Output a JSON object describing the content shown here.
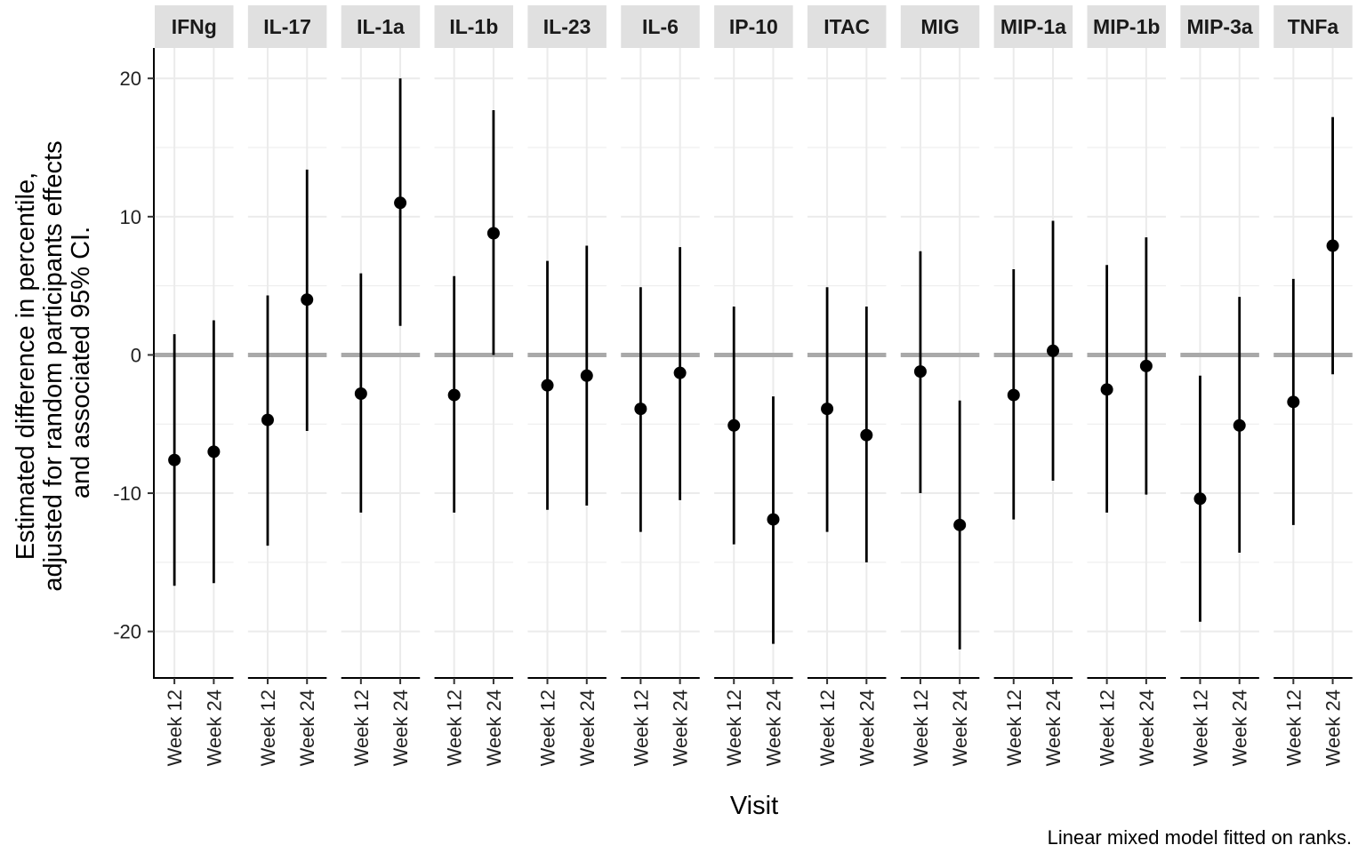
{
  "chart_data": {
    "type": "scatter",
    "subtype": "point-range faceted",
    "facets": [
      "IFNg",
      "IL-17",
      "IL-1a",
      "IL-1b",
      "IL-23",
      "IL-6",
      "IP-10",
      "ITAC",
      "MIG",
      "MIP-1a",
      "MIP-1b",
      "MIP-3a",
      "TNFa"
    ],
    "categories": [
      "Week 12",
      "Week 24"
    ],
    "xlabel": "Visit",
    "ylabel_lines": [
      "Estimated difference in percentile,",
      "adjusted for random participants effects",
      "and associated 95% CI."
    ],
    "caption": "Linear mixed model fitted on ranks.",
    "ylim": [
      -23.3,
      22.2
    ],
    "yticks": [
      20,
      10,
      0,
      -10,
      -20
    ],
    "ytick_labels": [
      "20",
      "10",
      "0",
      "-10",
      "-20"
    ],
    "reference_line": 0,
    "grid": true,
    "colors": {
      "point": "#000000",
      "reference_line": "#a9a9a9",
      "grid": "#ebebeb",
      "strip": "#e0e0e0"
    },
    "series": [
      {
        "facet": "IFNg",
        "points": [
          {
            "x": "Week 12",
            "y": -7.6,
            "lo": -16.7,
            "hi": 1.5
          },
          {
            "x": "Week 24",
            "y": -7.0,
            "lo": -16.5,
            "hi": 2.5
          }
        ]
      },
      {
        "facet": "IL-17",
        "points": [
          {
            "x": "Week 12",
            "y": -4.7,
            "lo": -13.8,
            "hi": 4.3
          },
          {
            "x": "Week 24",
            "y": 4.0,
            "lo": -5.5,
            "hi": 13.4
          }
        ]
      },
      {
        "facet": "IL-1a",
        "points": [
          {
            "x": "Week 12",
            "y": -2.8,
            "lo": -11.4,
            "hi": 5.9
          },
          {
            "x": "Week 24",
            "y": 11.0,
            "lo": 2.1,
            "hi": 20.0
          }
        ]
      },
      {
        "facet": "IL-1b",
        "points": [
          {
            "x": "Week 12",
            "y": -2.9,
            "lo": -11.4,
            "hi": 5.7
          },
          {
            "x": "Week 24",
            "y": 8.8,
            "lo": 0.0,
            "hi": 17.7
          }
        ]
      },
      {
        "facet": "IL-23",
        "points": [
          {
            "x": "Week 12",
            "y": -2.2,
            "lo": -11.2,
            "hi": 6.8
          },
          {
            "x": "Week 24",
            "y": -1.5,
            "lo": -10.9,
            "hi": 7.9
          }
        ]
      },
      {
        "facet": "IL-6",
        "points": [
          {
            "x": "Week 12",
            "y": -3.9,
            "lo": -12.8,
            "hi": 4.9
          },
          {
            "x": "Week 24",
            "y": -1.3,
            "lo": -10.5,
            "hi": 7.8
          }
        ]
      },
      {
        "facet": "IP-10",
        "points": [
          {
            "x": "Week 12",
            "y": -5.1,
            "lo": -13.7,
            "hi": 3.5
          },
          {
            "x": "Week 24",
            "y": -11.9,
            "lo": -20.9,
            "hi": -3.0
          }
        ]
      },
      {
        "facet": "ITAC",
        "points": [
          {
            "x": "Week 12",
            "y": -3.9,
            "lo": -12.8,
            "hi": 4.9
          },
          {
            "x": "Week 24",
            "y": -5.8,
            "lo": -15.0,
            "hi": 3.5
          }
        ]
      },
      {
        "facet": "MIG",
        "points": [
          {
            "x": "Week 12",
            "y": -1.2,
            "lo": -10.0,
            "hi": 7.5
          },
          {
            "x": "Week 24",
            "y": -12.3,
            "lo": -21.3,
            "hi": -3.3
          }
        ]
      },
      {
        "facet": "MIP-1a",
        "points": [
          {
            "x": "Week 12",
            "y": -2.9,
            "lo": -11.9,
            "hi": 6.2
          },
          {
            "x": "Week 24",
            "y": 0.3,
            "lo": -9.1,
            "hi": 9.7
          }
        ]
      },
      {
        "facet": "MIP-1b",
        "points": [
          {
            "x": "Week 12",
            "y": -2.5,
            "lo": -11.4,
            "hi": 6.5
          },
          {
            "x": "Week 24",
            "y": -0.8,
            "lo": -10.1,
            "hi": 8.5
          }
        ]
      },
      {
        "facet": "MIP-3a",
        "points": [
          {
            "x": "Week 12",
            "y": -10.4,
            "lo": -19.3,
            "hi": -1.5
          },
          {
            "x": "Week 24",
            "y": -5.1,
            "lo": -14.3,
            "hi": 4.2
          }
        ]
      },
      {
        "facet": "TNFa",
        "points": [
          {
            "x": "Week 12",
            "y": -3.4,
            "lo": -12.3,
            "hi": 5.5
          },
          {
            "x": "Week 24",
            "y": 7.9,
            "lo": -1.4,
            "hi": 17.2
          }
        ]
      }
    ]
  }
}
